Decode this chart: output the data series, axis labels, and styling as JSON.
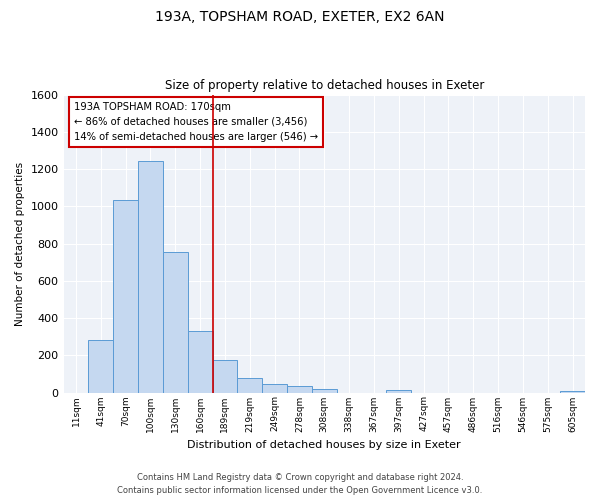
{
  "title_line1": "193A, TOPSHAM ROAD, EXETER, EX2 6AN",
  "title_line2": "Size of property relative to detached houses in Exeter",
  "xlabel": "Distribution of detached houses by size in Exeter",
  "ylabel": "Number of detached properties",
  "bin_labels": [
    "11sqm",
    "41sqm",
    "70sqm",
    "100sqm",
    "130sqm",
    "160sqm",
    "189sqm",
    "219sqm",
    "249sqm",
    "278sqm",
    "308sqm",
    "338sqm",
    "367sqm",
    "397sqm",
    "427sqm",
    "457sqm",
    "486sqm",
    "516sqm",
    "546sqm",
    "575sqm",
    "605sqm"
  ],
  "bar_values": [
    0,
    280,
    1035,
    1245,
    755,
    330,
    175,
    80,
    48,
    33,
    20,
    0,
    0,
    12,
    0,
    0,
    0,
    0,
    0,
    0,
    10
  ],
  "bar_color": "#c5d8f0",
  "bar_edge_color": "#5b9bd5",
  "vline_color": "#cc0000",
  "annotation_title": "193A TOPSHAM ROAD: 170sqm",
  "annotation_line1": "← 86% of detached houses are smaller (3,456)",
  "annotation_line2": "14% of semi-detached houses are larger (546) →",
  "annotation_box_color": "#cc0000",
  "ylim": [
    0,
    1600
  ],
  "yticks": [
    0,
    200,
    400,
    600,
    800,
    1000,
    1200,
    1400,
    1600
  ],
  "footer_line1": "Contains HM Land Registry data © Crown copyright and database right 2024.",
  "footer_line2": "Contains public sector information licensed under the Open Government Licence v3.0.",
  "background_color": "#eef2f8"
}
